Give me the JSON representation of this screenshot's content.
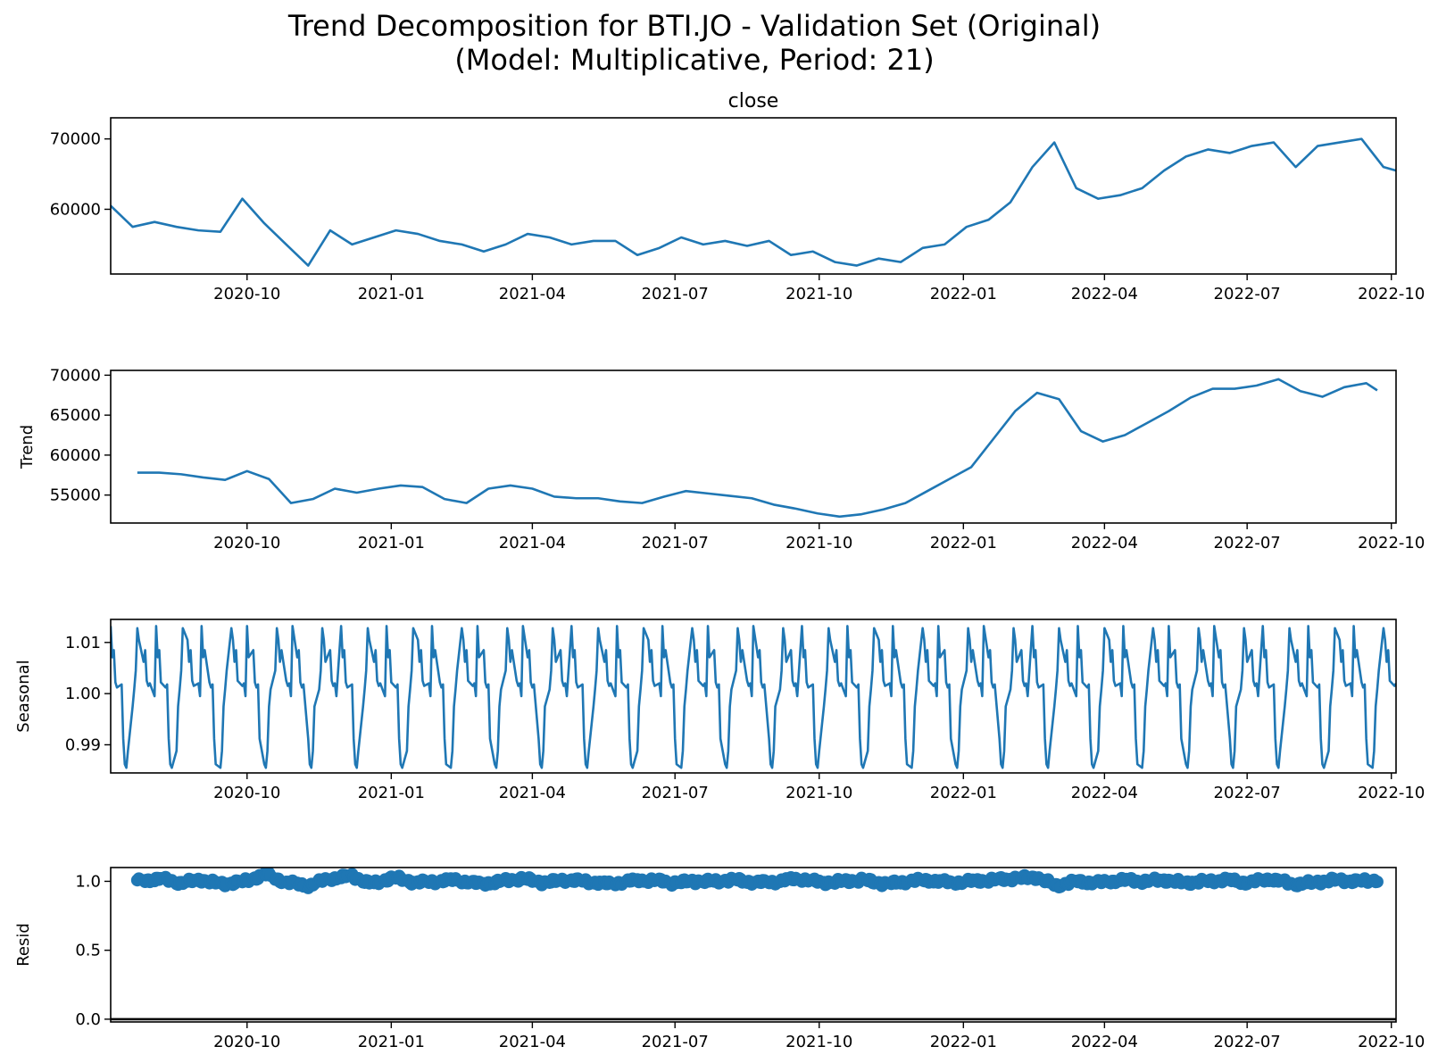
{
  "figure": {
    "title_line1": "Trend Decomposition for BTI.JO - Validation Set (Original)",
    "title_line2": "(Model: Multiplicative, Period: 21)"
  },
  "colors": {
    "series": "#1f77b4",
    "axes": "#000000",
    "zero_line": "#000000"
  },
  "x_ticks": [
    "2020-10",
    "2021-01",
    "2021-04",
    "2021-07",
    "2021-10",
    "2022-01",
    "2022-04",
    "2022-07",
    "2022-10"
  ],
  "chart_data": [
    {
      "type": "line",
      "title": "close",
      "ylabel": "",
      "xlim": [
        "2020-07-06",
        "2022-10-04"
      ],
      "ylim": [
        50800,
        73000
      ],
      "yticks": [
        60000,
        70000
      ],
      "x": [
        "2020-07-06",
        "2020-07-20",
        "2020-08-03",
        "2020-08-17",
        "2020-08-31",
        "2020-09-14",
        "2020-09-28",
        "2020-10-12",
        "2020-10-26",
        "2020-11-09",
        "2020-11-23",
        "2020-12-07",
        "2020-12-21",
        "2021-01-04",
        "2021-01-18",
        "2021-02-01",
        "2021-02-15",
        "2021-03-01",
        "2021-03-15",
        "2021-03-29",
        "2021-04-12",
        "2021-04-26",
        "2021-05-10",
        "2021-05-24",
        "2021-06-07",
        "2021-06-21",
        "2021-07-05",
        "2021-07-19",
        "2021-08-02",
        "2021-08-16",
        "2021-08-30",
        "2021-09-13",
        "2021-09-27",
        "2021-10-11",
        "2021-10-25",
        "2021-11-08",
        "2021-11-22",
        "2021-12-06",
        "2021-12-20",
        "2022-01-03",
        "2022-01-17",
        "2022-01-31",
        "2022-02-14",
        "2022-02-28",
        "2022-03-14",
        "2022-03-28",
        "2022-04-11",
        "2022-04-25",
        "2022-05-09",
        "2022-05-23",
        "2022-06-06",
        "2022-06-20",
        "2022-07-04",
        "2022-07-18",
        "2022-08-01",
        "2022-08-15",
        "2022-08-29",
        "2022-09-12",
        "2022-09-26",
        "2022-10-04"
      ],
      "series": [
        {
          "values": [
            60500,
            57500,
            58200,
            57500,
            57000,
            56800,
            61500,
            58000,
            55000,
            52000,
            57000,
            55000,
            56000,
            57000,
            56500,
            55500,
            55000,
            54000,
            55000,
            56500,
            56000,
            55000,
            55500,
            55500,
            53500,
            54500,
            56000,
            55000,
            55500,
            54800,
            55500,
            53500,
            54000,
            52500,
            52000,
            53000,
            52500,
            54500,
            55000,
            57500,
            58500,
            61000,
            66000,
            69500,
            63000,
            61500,
            62000,
            63000,
            65500,
            67500,
            68500,
            68000,
            69000,
            69500,
            66000,
            69000,
            69500,
            70000,
            66000,
            65500
          ]
        }
      ]
    },
    {
      "type": "line",
      "title": "",
      "ylabel": "Trend",
      "xlim": [
        "2020-07-06",
        "2022-10-04"
      ],
      "ylim": [
        51500,
        70600
      ],
      "yticks": [
        55000,
        60000,
        65000,
        70000
      ],
      "x": [
        "2020-07-23",
        "2020-08-06",
        "2020-08-20",
        "2020-09-03",
        "2020-09-17",
        "2020-10-01",
        "2020-10-15",
        "2020-10-29",
        "2020-11-12",
        "2020-11-26",
        "2020-12-10",
        "2020-12-24",
        "2021-01-07",
        "2021-01-21",
        "2021-02-04",
        "2021-02-18",
        "2021-03-04",
        "2021-03-18",
        "2021-04-01",
        "2021-04-15",
        "2021-04-29",
        "2021-05-13",
        "2021-05-27",
        "2021-06-10",
        "2021-06-24",
        "2021-07-08",
        "2021-07-22",
        "2021-08-05",
        "2021-08-19",
        "2021-09-02",
        "2021-09-16",
        "2021-09-30",
        "2021-10-14",
        "2021-10-28",
        "2021-11-11",
        "2021-11-25",
        "2021-12-09",
        "2021-12-23",
        "2022-01-06",
        "2022-01-20",
        "2022-02-03",
        "2022-02-17",
        "2022-03-03",
        "2022-03-17",
        "2022-03-31",
        "2022-04-14",
        "2022-04-28",
        "2022-05-12",
        "2022-05-26",
        "2022-06-09",
        "2022-06-23",
        "2022-07-07",
        "2022-07-21",
        "2022-08-04",
        "2022-08-18",
        "2022-09-01",
        "2022-09-15",
        "2022-09-22"
      ],
      "series": [
        {
          "values": [
            57800,
            57800,
            57600,
            57200,
            56900,
            58000,
            57000,
            54000,
            54500,
            55800,
            55300,
            55800,
            56200,
            56000,
            54500,
            54000,
            55800,
            56200,
            55800,
            54800,
            54600,
            54600,
            54200,
            54000,
            54800,
            55500,
            55200,
            54900,
            54600,
            53800,
            53300,
            52700,
            52300,
            52600,
            53200,
            54000,
            55500,
            57000,
            58500,
            62000,
            65500,
            67800,
            67000,
            63000,
            61700,
            62500,
            64000,
            65500,
            67200,
            68300,
            68300,
            68700,
            69500,
            68000,
            67300,
            68500,
            69000,
            68100
          ]
        }
      ]
    },
    {
      "type": "line",
      "title": "",
      "ylabel": "Seasonal",
      "xlim": [
        "2020-07-06",
        "2022-10-04"
      ],
      "ylim": [
        0.9845,
        1.0145
      ],
      "yticks": [
        0.99,
        1.0,
        1.01
      ],
      "period_trading_days": 21,
      "x_start": "2020-07-06",
      "x_end": "2022-10-04",
      "series": [
        {
          "values": [
            1.0132,
            1.0071,
            1.0085,
            1.0022,
            1.0012,
            1.0018,
            0.9912,
            0.9862,
            0.9855,
            0.9888,
            0.9975,
            1.0008,
            1.0045,
            1.0128,
            1.0105,
            1.0062,
            1.0085,
            1.0025,
            1.0015,
            1.002,
            0.9995
          ]
        }
      ]
    },
    {
      "type": "scatter",
      "title": "",
      "ylabel": "Resid",
      "xlim": [
        "2020-07-06",
        "2022-10-04"
      ],
      "ylim": [
        -0.02,
        1.1
      ],
      "yticks": [
        0.0,
        0.5,
        1.0
      ],
      "x_start": "2020-07-23",
      "x_end": "2022-09-22",
      "series": [
        {
          "values": [
            1.0,
            1.02,
            0.99,
            1.01,
            0.98,
            1.0,
            1.05,
            0.99,
            0.97,
            1.02,
            1.04,
            0.98,
            1.03,
            0.99,
            1.0,
            1.01,
            0.98,
            1.0,
            1.02,
            0.99,
            1.01,
            1.0,
            0.98,
            1.0,
            1.01,
            0.99,
            1.0,
            1.0,
            1.01,
            0.99,
            1.0,
            1.02,
            0.99,
            1.0,
            1.01,
            0.98,
            1.0,
            1.01,
            0.99,
            1.0,
            1.01,
            1.02,
            1.03,
            0.97,
            1.0,
            0.99,
            1.01,
            1.0,
            1.01,
            0.99,
            1.0,
            1.01,
            0.99,
            1.02,
            0.98,
            0.99,
            1.01,
            1.0,
            1.01
          ]
        }
      ],
      "hline": 0.0
    }
  ]
}
